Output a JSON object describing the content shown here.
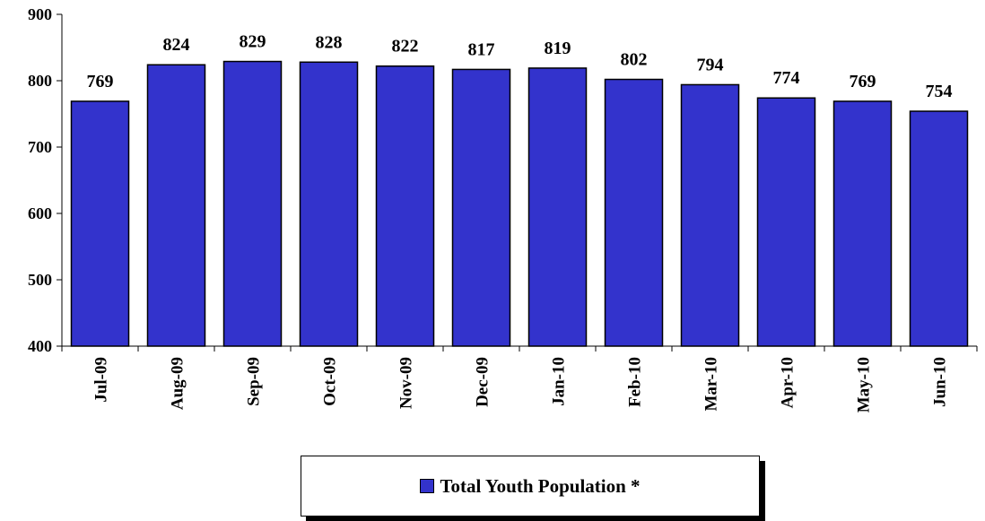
{
  "chart_data": {
    "type": "bar",
    "categories": [
      "Jul-09",
      "Aug-09",
      "Sep-09",
      "Oct-09",
      "Nov-09",
      "Dec-09",
      "Jan-10",
      "Feb-10",
      "Mar-10",
      "Apr-10",
      "May-10",
      "Jun-10"
    ],
    "series": [
      {
        "name": "Total Youth Population *",
        "values": [
          769,
          824,
          829,
          828,
          822,
          817,
          819,
          802,
          794,
          774,
          769,
          754
        ],
        "color": "#3333cc"
      }
    ],
    "ylim": [
      400,
      900
    ],
    "yticks": [
      400,
      500,
      600,
      700,
      800,
      900
    ],
    "ytick_labels": [
      "400",
      "500",
      "600",
      "700",
      "800",
      "900"
    ],
    "grid": false,
    "data_labels": true,
    "legend_position": "bottom"
  }
}
